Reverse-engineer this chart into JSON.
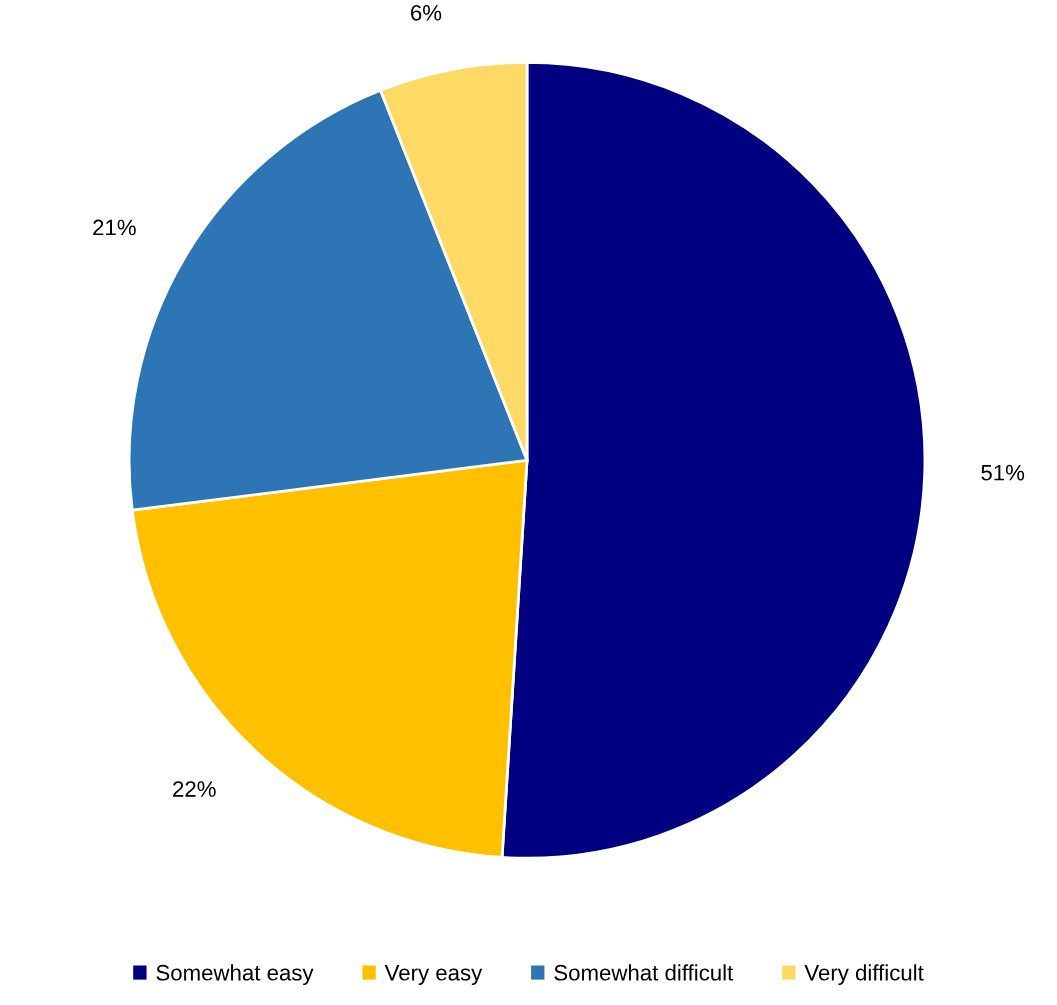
{
  "chart_data": {
    "type": "pie",
    "categories": [
      "Somewhat easy",
      "Very easy",
      "Somewhat difficult",
      "Very difficult"
    ],
    "values": [
      51,
      22,
      21,
      6
    ],
    "colors": [
      "#000080",
      "#ffc000",
      "#2e75b6",
      "#ffd966"
    ],
    "value_labels": [
      "51%",
      "22%",
      "21%",
      "6%"
    ],
    "legend": "bottom"
  }
}
